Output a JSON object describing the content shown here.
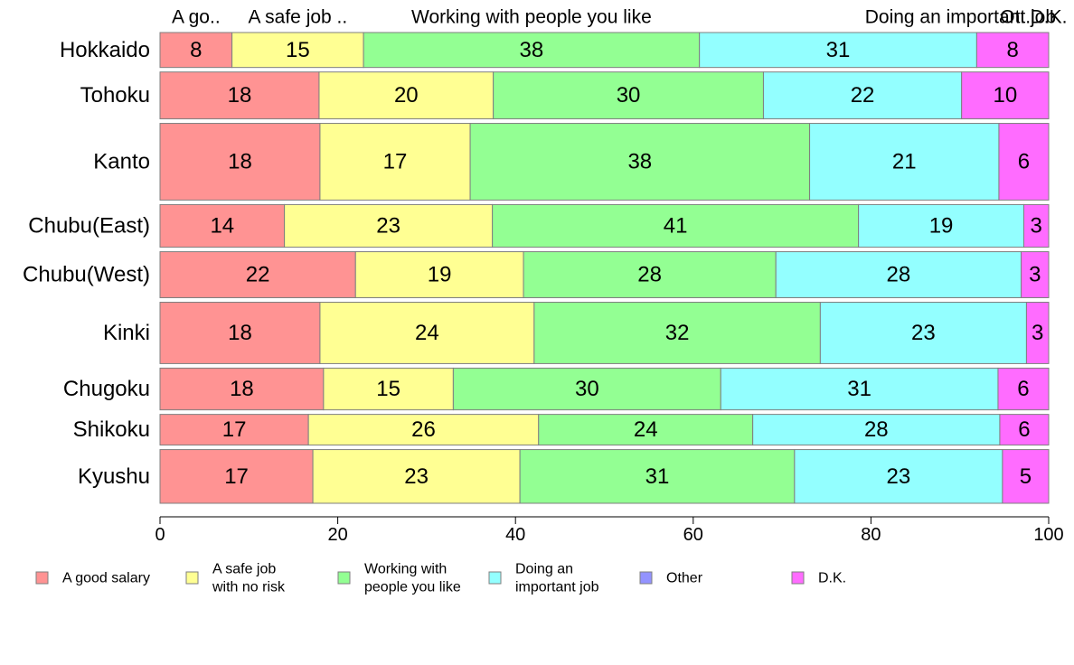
{
  "chart_data": {
    "type": "bar",
    "orientation": "horizontal",
    "stacked": true,
    "normalized": true,
    "title": "",
    "xlabel": "",
    "ylabel": "",
    "xlim": [
      0,
      100
    ],
    "xticks": [
      "0",
      "20",
      "40",
      "60",
      "80",
      "100"
    ],
    "grid": false,
    "categories": [
      "Hokkaido",
      "Tohoku",
      "Kanto",
      "Chubu(East)",
      "Chubu(West)",
      "Kinki",
      "Chugoku",
      "Shikoku",
      "Kyushu"
    ],
    "category_weights": [
      41,
      55,
      90,
      50,
      54,
      72,
      49,
      36,
      63
    ],
    "top_labels": [
      "A go..",
      "A safe job ..",
      "Working with people you like",
      "",
      "Doing an important job",
      "Ot..",
      "D.K."
    ],
    "series": [
      {
        "name": "A good salary",
        "legend_lines": [
          "A good salary"
        ],
        "color": "#ff9393",
        "values": [
          8.1,
          17.9,
          18.0,
          14.0,
          22.0,
          18.0,
          18.4,
          16.7,
          17.2
        ]
      },
      {
        "name": "A safe job with no risk",
        "legend_lines": [
          "A safe job",
          "with no risk"
        ],
        "color": "#ffff93",
        "values": [
          14.8,
          19.6,
          16.9,
          23.4,
          18.9,
          24.1,
          14.6,
          25.9,
          23.3
        ]
      },
      {
        "name": "Working with people you like",
        "legend_lines": [
          "Working with",
          "people you like"
        ],
        "color": "#93ff93",
        "values": [
          37.8,
          30.4,
          38.2,
          41.2,
          28.4,
          32.2,
          30.1,
          24.1,
          30.9
        ]
      },
      {
        "name": "Doing an important job",
        "legend_lines": [
          "Doing an",
          "important job"
        ],
        "color": "#93ffff",
        "values": [
          31.2,
          22.3,
          21.3,
          18.6,
          27.6,
          23.2,
          31.2,
          27.8,
          23.4
        ]
      },
      {
        "name": "Other",
        "legend_lines": [
          "Other"
        ],
        "color": "#9393ff",
        "values": [
          0,
          0,
          0,
          0,
          0,
          0,
          0,
          0,
          0
        ]
      },
      {
        "name": "D.K.",
        "legend_lines": [
          "D.K."
        ],
        "color": "#ff6cff",
        "values": [
          8.1,
          9.8,
          5.6,
          2.8,
          3.1,
          2.5,
          5.7,
          5.5,
          5.2
        ]
      }
    ],
    "data_labels": [
      [
        "8",
        "15",
        "38",
        "31",
        "",
        "8"
      ],
      [
        "18",
        "20",
        "30",
        "22",
        "",
        "10"
      ],
      [
        "18",
        "17",
        "38",
        "21",
        "",
        "6"
      ],
      [
        "14",
        "23",
        "41",
        "19",
        "",
        "3"
      ],
      [
        "22",
        "19",
        "28",
        "28",
        "",
        "3"
      ],
      [
        "18",
        "24",
        "32",
        "23",
        "",
        "3"
      ],
      [
        "18",
        "15",
        "30",
        "31",
        "",
        "6"
      ],
      [
        "17",
        "26",
        "24",
        "28",
        "",
        "6"
      ],
      [
        "17",
        "23",
        "31",
        "23",
        "",
        "5"
      ]
    ],
    "legend_position": "bottom"
  }
}
